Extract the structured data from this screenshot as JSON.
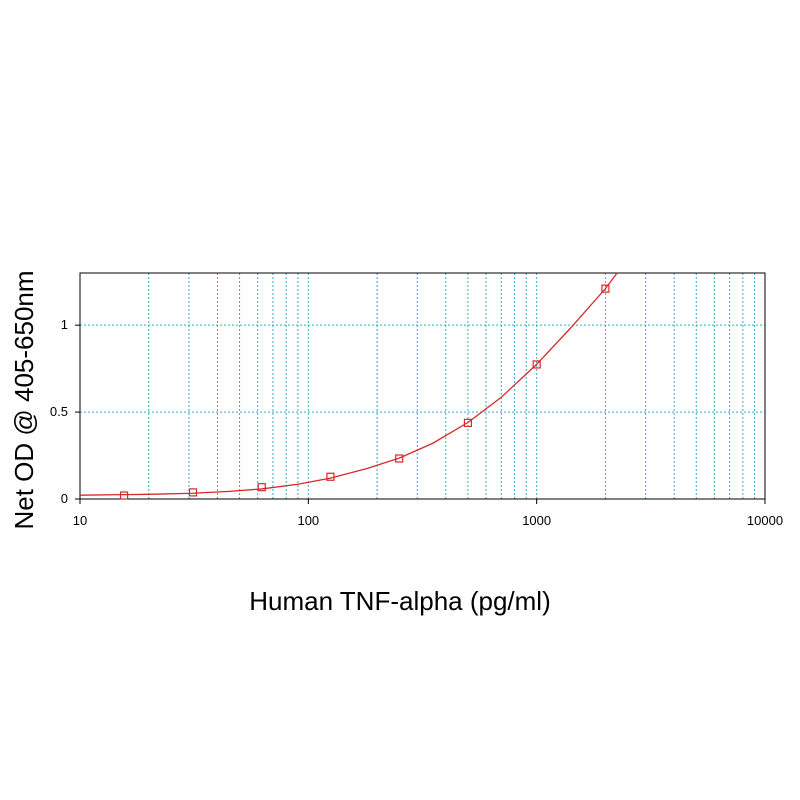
{
  "chart_data": {
    "type": "scatter",
    "x_scale": "log",
    "xlabel": "Human TNF-alpha (pg/ml)",
    "ylabel": "Net OD @ 405-650nm",
    "xlim": [
      10,
      10000
    ],
    "ylim": [
      0,
      1.3
    ],
    "x_ticks": [
      10,
      100,
      1000,
      10000
    ],
    "x_tick_labels": [
      "10",
      "100",
      "1000",
      "10000"
    ],
    "y_ticks": [
      0,
      0.5,
      1
    ],
    "y_tick_labels": [
      "0",
      "0.5",
      "1"
    ],
    "grid": true,
    "series_color": "#d42a2a",
    "grid_color": "#3aa7c8",
    "points": [
      {
        "x": 15.6,
        "y": 0.02
      },
      {
        "x": 31.25,
        "y": 0.038
      },
      {
        "x": 62.5,
        "y": 0.068
      },
      {
        "x": 125,
        "y": 0.128
      },
      {
        "x": 250,
        "y": 0.233
      },
      {
        "x": 500,
        "y": 0.438
      },
      {
        "x": 1000,
        "y": 0.774
      },
      {
        "x": 2000,
        "y": 1.21
      }
    ],
    "fit_curve": [
      {
        "x": 10,
        "y": 0.022
      },
      {
        "x": 15.6,
        "y": 0.025
      },
      {
        "x": 20,
        "y": 0.027
      },
      {
        "x": 31.25,
        "y": 0.033
      },
      {
        "x": 45,
        "y": 0.044
      },
      {
        "x": 62.5,
        "y": 0.058
      },
      {
        "x": 90,
        "y": 0.085
      },
      {
        "x": 125,
        "y": 0.12
      },
      {
        "x": 180,
        "y": 0.175
      },
      {
        "x": 250,
        "y": 0.235
      },
      {
        "x": 350,
        "y": 0.32
      },
      {
        "x": 500,
        "y": 0.44
      },
      {
        "x": 700,
        "y": 0.585
      },
      {
        "x": 1000,
        "y": 0.775
      },
      {
        "x": 1400,
        "y": 0.98
      },
      {
        "x": 2000,
        "y": 1.21
      },
      {
        "x": 2250,
        "y": 1.3
      }
    ]
  }
}
